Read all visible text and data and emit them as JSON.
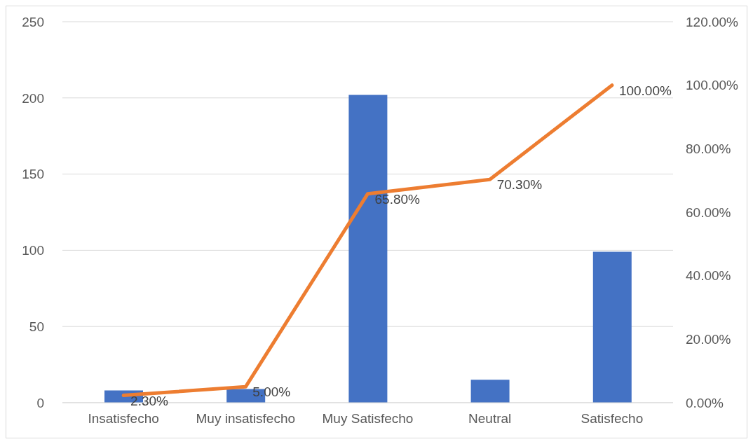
{
  "chart_data": {
    "type": "bar",
    "categories": [
      "Insatisfecho",
      "Muy insatisfecho",
      "Muy Satisfecho",
      "Neutral",
      "Satisfecho"
    ],
    "series": [
      {
        "color": "#4472c4",
        "values": [
          8,
          9,
          202,
          15,
          99
        ]
      },
      {
        "type": "line",
        "axis": "y2",
        "color": "#ed7d31",
        "values": [
          2.3,
          5.0,
          65.8,
          70.3,
          100
        ],
        "value_labels": [
          "2.30%",
          "5.00%",
          "65.80%",
          "70.30%",
          "100.00%"
        ]
      }
    ],
    "ylim": [
      0,
      250
    ],
    "yticks": [
      0,
      50,
      100,
      150,
      200,
      250
    ],
    "y2lim": [
      0,
      120
    ],
    "y2ticks": [
      {
        "value": 0,
        "label": "0.00%"
      },
      {
        "value": 20,
        "label": "20.00%"
      },
      {
        "value": 40,
        "label": "40.00%"
      },
      {
        "value": 60,
        "label": "60.00%"
      },
      {
        "value": 80,
        "label": "80.00%"
      },
      {
        "value": 100,
        "label": "100.00%"
      },
      {
        "value": 120,
        "label": "120.00%"
      }
    ],
    "grid": "y",
    "marker": "none",
    "line_style": "solid"
  }
}
